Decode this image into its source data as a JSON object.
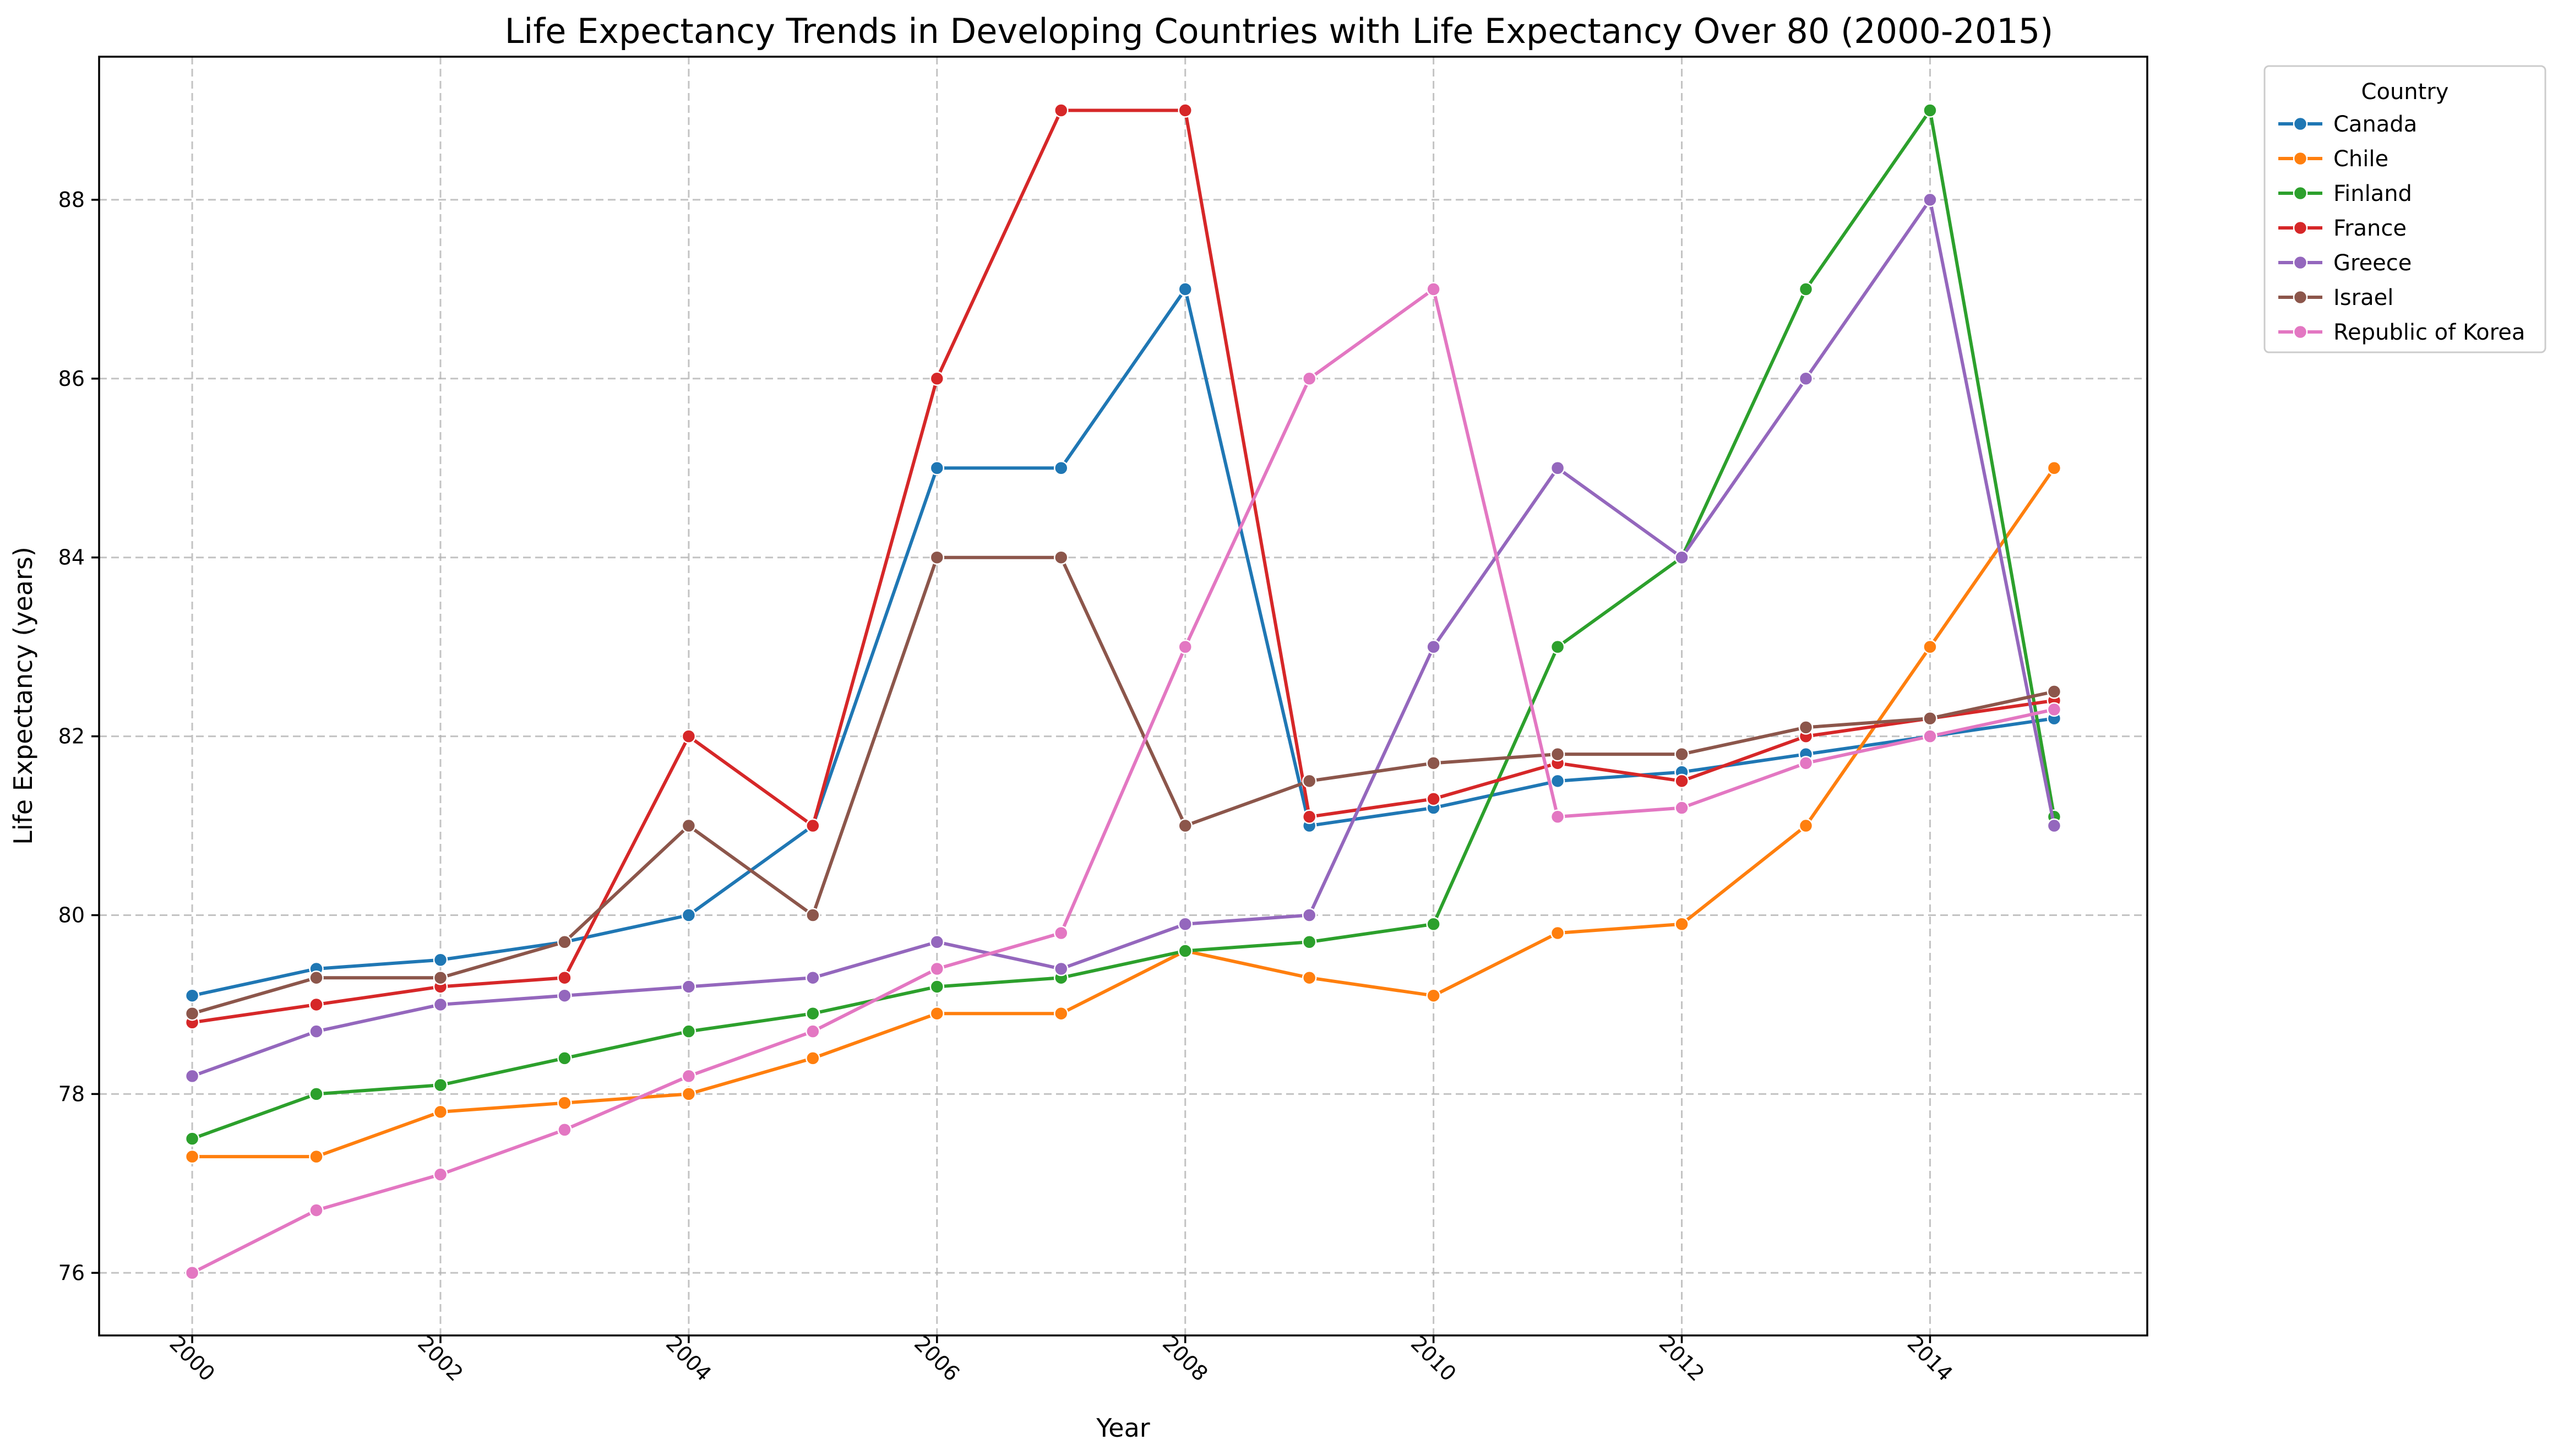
{
  "chart_data": {
    "type": "line",
    "title": "Life Expectancy Trends in Developing Countries with Life Expectancy Over 80 (2000-2015)",
    "xlabel": "Year",
    "ylabel": "Life Expectancy (years)",
    "xlim": [
      1999.25,
      2015.75
    ],
    "ylim": [
      75.3,
      89.6
    ],
    "x_ticks": [
      2000,
      2002,
      2004,
      2006,
      2008,
      2010,
      2012,
      2014
    ],
    "y_ticks": [
      76,
      78,
      80,
      82,
      84,
      86,
      88
    ],
    "x_tick_rotation": 45,
    "grid": true,
    "legend": {
      "title": "Country",
      "placement": "outside-upper-right"
    },
    "x": [
      2000,
      2001,
      2002,
      2003,
      2004,
      2005,
      2006,
      2007,
      2008,
      2009,
      2010,
      2011,
      2012,
      2013,
      2014,
      2015
    ],
    "series": [
      {
        "name": "Canada",
        "color": "#1f77b4",
        "values": [
          79.1,
          79.4,
          79.5,
          79.7,
          80.0,
          81.0,
          85.0,
          85.0,
          87.0,
          81.0,
          81.2,
          81.5,
          81.6,
          81.8,
          82.0,
          82.2
        ]
      },
      {
        "name": "Chile",
        "color": "#ff7f0e",
        "values": [
          77.3,
          77.3,
          77.8,
          77.9,
          78.0,
          78.4,
          78.9,
          78.9,
          79.6,
          79.3,
          79.1,
          79.8,
          79.9,
          81.0,
          83.0,
          85.0
        ]
      },
      {
        "name": "Finland",
        "color": "#2ca02c",
        "values": [
          77.5,
          78.0,
          78.1,
          78.4,
          78.7,
          78.9,
          79.2,
          79.3,
          79.6,
          79.7,
          79.9,
          83.0,
          84.0,
          87.0,
          89.0,
          81.1
        ]
      },
      {
        "name": "France",
        "color": "#d62728",
        "values": [
          78.8,
          79.0,
          79.2,
          79.3,
          82.0,
          81.0,
          86.0,
          89.0,
          89.0,
          81.1,
          81.3,
          81.7,
          81.5,
          82.0,
          82.2,
          82.4
        ]
      },
      {
        "name": "Greece",
        "color": "#9467bd",
        "values": [
          78.2,
          78.7,
          79.0,
          79.1,
          79.2,
          79.3,
          79.7,
          79.4,
          79.9,
          80.0,
          83.0,
          85.0,
          84.0,
          86.0,
          88.0,
          81.0
        ]
      },
      {
        "name": "Israel",
        "color": "#8c564b",
        "values": [
          78.9,
          79.3,
          79.3,
          79.7,
          81.0,
          80.0,
          84.0,
          84.0,
          81.0,
          81.5,
          81.7,
          81.8,
          81.8,
          82.1,
          82.2,
          82.5
        ]
      },
      {
        "name": "Republic of Korea",
        "color": "#e377c2",
        "values": [
          76.0,
          76.7,
          77.1,
          77.6,
          78.2,
          78.7,
          79.4,
          79.8,
          83.0,
          86.0,
          87.0,
          81.1,
          81.2,
          81.7,
          82.0,
          82.3
        ]
      }
    ]
  }
}
